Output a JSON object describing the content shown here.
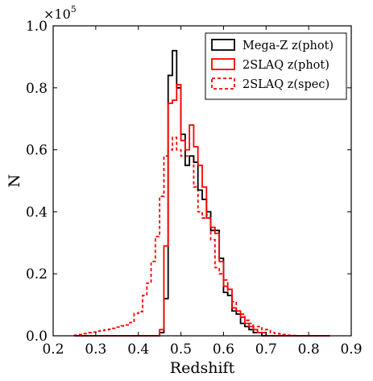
{
  "chart_data": {
    "type": "line",
    "drawstyle": "steps",
    "xlabel": "Redshift",
    "ylabel": "N",
    "xlim": [
      0.2,
      0.9
    ],
    "ylim": [
      0.0,
      1.0
    ],
    "y_multiplier_text": "×10",
    "y_multiplier_exp": "5",
    "xticks": [
      "0.2",
      "0.3",
      "0.4",
      "0.5",
      "0.6",
      "0.7",
      "0.8",
      "0.9"
    ],
    "yticks": [
      "0.0",
      "0.2",
      "0.4",
      "0.6",
      "0.8",
      "1.0"
    ],
    "legend_position": "top-right",
    "grid": false,
    "bin_edges": [
      0.25,
      0.26,
      0.27,
      0.28,
      0.29,
      0.3,
      0.31,
      0.32,
      0.33,
      0.34,
      0.35,
      0.36,
      0.37,
      0.38,
      0.39,
      0.4,
      0.41,
      0.42,
      0.43,
      0.44,
      0.45,
      0.46,
      0.47,
      0.48,
      0.49,
      0.5,
      0.51,
      0.52,
      0.53,
      0.54,
      0.55,
      0.56,
      0.57,
      0.58,
      0.59,
      0.6,
      0.61,
      0.62,
      0.63,
      0.64,
      0.65,
      0.66,
      0.67,
      0.68,
      0.69,
      0.7,
      0.71,
      0.72,
      0.73,
      0.74,
      0.75,
      0.76,
      0.77,
      0.78,
      0.79,
      0.8,
      0.81,
      0.82,
      0.83,
      0.84,
      0.85
    ],
    "series": [
      {
        "name": "Mega-Z z(phot)",
        "color": "#000000",
        "linestyle": "solid",
        "values": [
          0,
          0,
          0,
          0,
          0,
          0,
          0,
          0,
          0,
          0,
          0,
          0,
          0,
          0,
          0,
          0,
          0,
          0,
          0,
          0,
          0.01,
          0.12,
          0.84,
          0.92,
          0.8,
          0.65,
          0.55,
          0.58,
          0.56,
          0.47,
          0.44,
          0.4,
          0.34,
          0.34,
          0.25,
          0.14,
          0.13,
          0.08,
          0.07,
          0.04,
          0.03,
          0.02,
          0.01,
          0.01,
          0.0,
          0.0,
          0.0,
          0.0,
          0.0,
          0.0,
          0,
          0,
          0,
          0,
          0,
          0,
          0,
          0,
          0,
          0
        ]
      },
      {
        "name": "2SLAQ z(phot)",
        "color": "#ff0000",
        "linestyle": "solid",
        "values": [
          0,
          0,
          0,
          0,
          0,
          0,
          0,
          0,
          0,
          0,
          0,
          0,
          0,
          0,
          0,
          0,
          0,
          0,
          0,
          0,
          0.02,
          0.29,
          0.75,
          0.76,
          0.81,
          0.63,
          0.6,
          0.68,
          0.61,
          0.55,
          0.48,
          0.38,
          0.35,
          0.33,
          0.24,
          0.16,
          0.15,
          0.09,
          0.08,
          0.06,
          0.04,
          0.03,
          0.02,
          0.01,
          0.01,
          0.0,
          0.0,
          0.0,
          0.0,
          0.0,
          0,
          0,
          0,
          0,
          0,
          0,
          0,
          0,
          0,
          0
        ]
      },
      {
        "name": "2SLAQ z(spec)",
        "color": "#ff0000",
        "linestyle": "dashed",
        "values": [
          0.002,
          0.004,
          0.007,
          0.01,
          0.012,
          0.015,
          0.017,
          0.019,
          0.021,
          0.024,
          0.028,
          0.032,
          0.035,
          0.043,
          0.072,
          0.078,
          0.13,
          0.17,
          0.24,
          0.32,
          0.45,
          0.58,
          0.6,
          0.64,
          0.6,
          0.58,
          0.58,
          0.58,
          0.48,
          0.4,
          0.38,
          0.39,
          0.31,
          0.22,
          0.2,
          0.18,
          0.13,
          0.11,
          0.07,
          0.07,
          0.05,
          0.04,
          0.03,
          0.03,
          0.02,
          0.02,
          0.01,
          0.008,
          0.006,
          0.004,
          0.002,
          0.001,
          0,
          0,
          0,
          0,
          0,
          0,
          0,
          0
        ]
      }
    ]
  }
}
